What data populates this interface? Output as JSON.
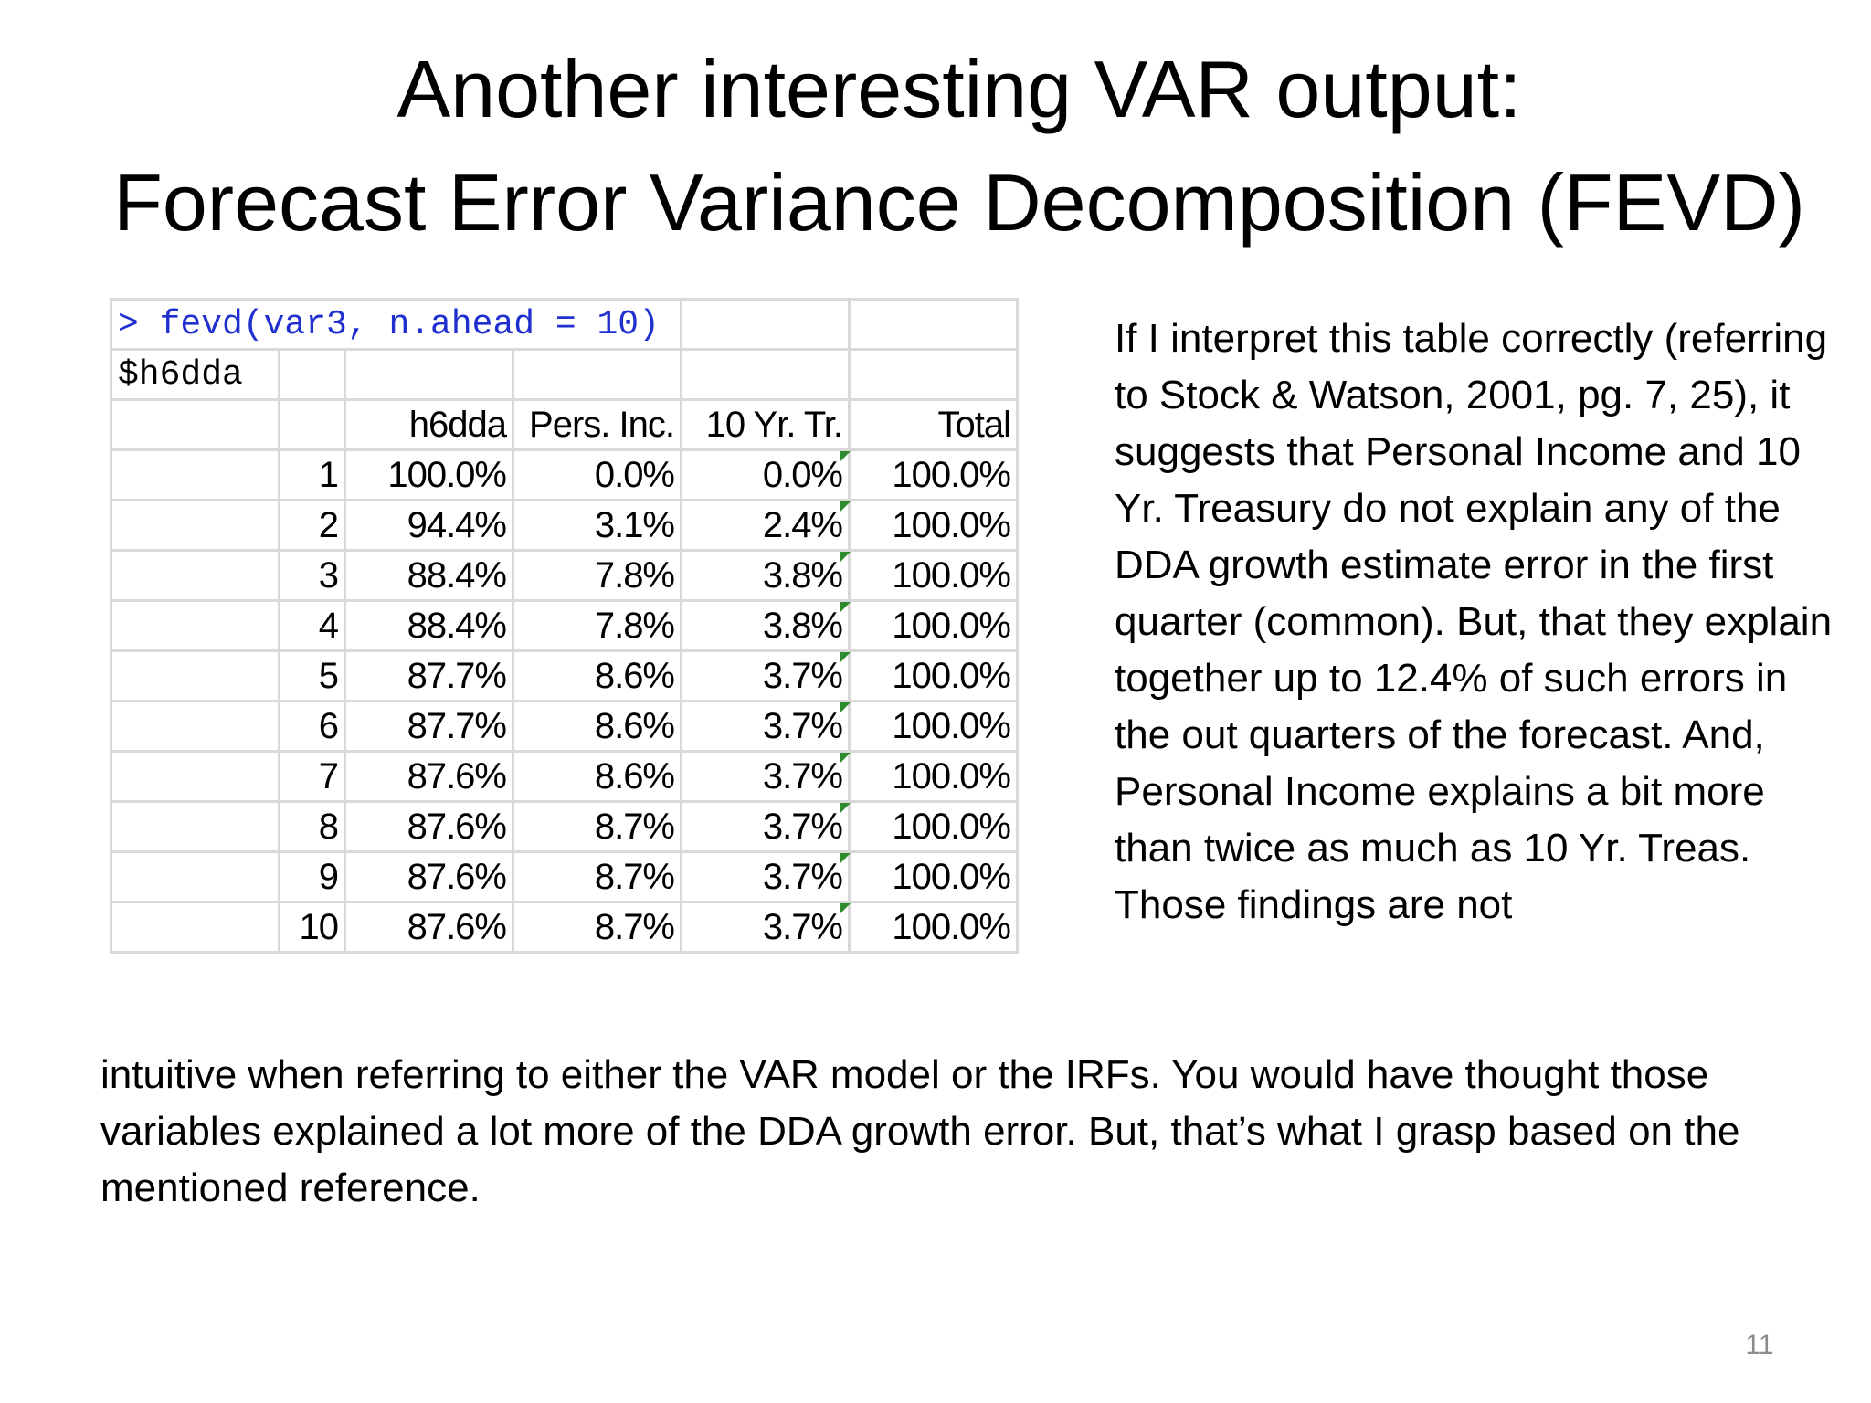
{
  "slide": {
    "title_line1": "Another interesting VAR output:",
    "title_line2": "Forecast Error Variance Decomposition (FEVD)",
    "page_number": "11"
  },
  "table": {
    "command": "> fevd(var3, n.ahead = 10)",
    "list_name": "$h6dda",
    "headers": [
      "h6dda",
      "Pers. Inc.",
      "10 Yr. Tr.",
      "Total"
    ],
    "rows": [
      {
        "step": "1",
        "h6dda": "100.0%",
        "pers_inc": "0.0%",
        "ten_yr_tr": "0.0%",
        "total": "100.0%"
      },
      {
        "step": "2",
        "h6dda": "94.4%",
        "pers_inc": "3.1%",
        "ten_yr_tr": "2.4%",
        "total": "100.0%"
      },
      {
        "step": "3",
        "h6dda": "88.4%",
        "pers_inc": "7.8%",
        "ten_yr_tr": "3.8%",
        "total": "100.0%"
      },
      {
        "step": "4",
        "h6dda": "88.4%",
        "pers_inc": "7.8%",
        "ten_yr_tr": "3.8%",
        "total": "100.0%"
      },
      {
        "step": "5",
        "h6dda": "87.7%",
        "pers_inc": "8.6%",
        "ten_yr_tr": "3.7%",
        "total": "100.0%"
      },
      {
        "step": "6",
        "h6dda": "87.7%",
        "pers_inc": "8.6%",
        "ten_yr_tr": "3.7%",
        "total": "100.0%"
      },
      {
        "step": "7",
        "h6dda": "87.6%",
        "pers_inc": "8.6%",
        "ten_yr_tr": "3.7%",
        "total": "100.0%"
      },
      {
        "step": "8",
        "h6dda": "87.6%",
        "pers_inc": "8.7%",
        "ten_yr_tr": "3.7%",
        "total": "100.0%"
      },
      {
        "step": "9",
        "h6dda": "87.6%",
        "pers_inc": "8.7%",
        "ten_yr_tr": "3.7%",
        "total": "100.0%"
      },
      {
        "step": "10",
        "h6dda": "87.6%",
        "pers_inc": "8.7%",
        "ten_yr_tr": "3.7%",
        "total": "100.0%"
      }
    ],
    "indicator_color": "#2e8b2e",
    "command_color": "#1f2fd0"
  },
  "commentary": {
    "side": "If I interpret this table correctly (referring to Stock & Watson, 2001, pg. 7, 25), it suggests that Personal Income and 10 Yr. Treasury do not explain any of the DDA growth estimate error in the first quarter (common).  But, that they explain together up to 12.4% of such errors in the out quarters of the forecast. And, Personal Income explains a bit more than twice as much as 10 Yr. Treas.  Those findings are not",
    "bottom": "intuitive when referring to either the VAR model or the IRFs.  You would have thought those variables explained a lot more of the DDA growth error.  But, that’s what I grasp based on the mentioned reference."
  }
}
